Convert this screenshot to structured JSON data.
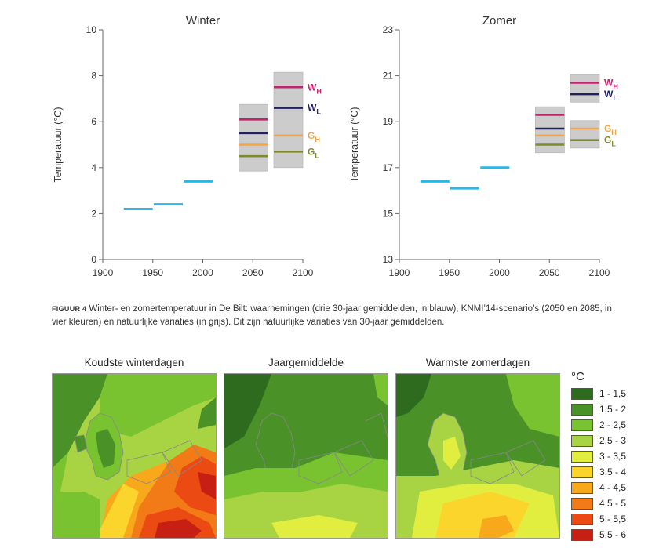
{
  "chart_data": [
    {
      "type": "line",
      "title": "Winter",
      "ylabel": "Temperatuur (°C)",
      "xlim": [
        1900,
        2100
      ],
      "ylim": [
        0,
        10
      ],
      "x_ticks": [
        "1900",
        "1950",
        "2000",
        "2050",
        "2100"
      ],
      "y_ticks": [
        "0",
        "2",
        "4",
        "6",
        "8",
        "10"
      ],
      "observations": [
        {
          "x_start": 1921,
          "x_end": 1950,
          "y": 2.2
        },
        {
          "x_start": 1951,
          "x_end": 1980,
          "y": 2.4
        },
        {
          "x_start": 1981,
          "x_end": 2010,
          "y": 3.4
        }
      ],
      "natural_variation": [
        {
          "x_start": 2036,
          "x_end": 2065,
          "y_min": 3.85,
          "y_max": 6.75
        },
        {
          "x_start": 2071,
          "x_end": 2100,
          "y_min": 4.0,
          "y_max": 8.15
        }
      ],
      "scenarios": [
        {
          "name": "W",
          "sub": "H",
          "color": "#c0246e",
          "values": [
            {
              "x_start": 2036,
              "x_end": 2065,
              "y": 6.1
            },
            {
              "x_start": 2071,
              "x_end": 2100,
              "y": 7.5
            }
          ]
        },
        {
          "name": "W",
          "sub": "L",
          "color": "#22205a",
          "values": [
            {
              "x_start": 2036,
              "x_end": 2065,
              "y": 5.5
            },
            {
              "x_start": 2071,
              "x_end": 2100,
              "y": 6.6
            }
          ]
        },
        {
          "name": "G",
          "sub": "H",
          "color": "#f4a646",
          "values": [
            {
              "x_start": 2036,
              "x_end": 2065,
              "y": 5.0
            },
            {
              "x_start": 2071,
              "x_end": 2100,
              "y": 5.4
            }
          ]
        },
        {
          "name": "G",
          "sub": "L",
          "color": "#7f8a30",
          "values": [
            {
              "x_start": 2036,
              "x_end": 2065,
              "y": 4.5
            },
            {
              "x_start": 2071,
              "x_end": 2100,
              "y": 4.7
            }
          ]
        }
      ]
    },
    {
      "type": "line",
      "title": "Zomer",
      "ylabel": "Temperatuur (°C)",
      "xlim": [
        1900,
        2100
      ],
      "ylim": [
        13,
        23
      ],
      "x_ticks": [
        "1900",
        "1950",
        "2000",
        "2050",
        "2100"
      ],
      "y_ticks": [
        "13",
        "15",
        "17",
        "19",
        "21",
        "23"
      ],
      "observations": [
        {
          "x_start": 1921,
          "x_end": 1950,
          "y": 16.4
        },
        {
          "x_start": 1951,
          "x_end": 1980,
          "y": 16.1
        },
        {
          "x_start": 1981,
          "x_end": 2010,
          "y": 17.0
        }
      ],
      "natural_variation": [
        {
          "x_start": 2036,
          "x_end": 2065,
          "y_min": 17.65,
          "y_max": 19.65
        },
        {
          "x_start": 2071,
          "x_end": 2100,
          "y_min": 19.85,
          "y_max": 21.05
        },
        {
          "x_start": 2071,
          "x_end": 2100,
          "y_min": 17.85,
          "y_max": 19.05
        }
      ],
      "scenarios": [
        {
          "name": "W",
          "sub": "H",
          "color": "#c0246e",
          "values": [
            {
              "x_start": 2036,
              "x_end": 2065,
              "y": 19.3
            },
            {
              "x_start": 2071,
              "x_end": 2100,
              "y": 20.7
            }
          ]
        },
        {
          "name": "W",
          "sub": "L",
          "color": "#22205a",
          "values": [
            {
              "x_start": 2036,
              "x_end": 2065,
              "y": 18.7
            },
            {
              "x_start": 2071,
              "x_end": 2100,
              "y": 20.2
            }
          ]
        },
        {
          "name": "G",
          "sub": "H",
          "color": "#f4a646",
          "values": [
            {
              "x_start": 2036,
              "x_end": 2065,
              "y": 18.4
            },
            {
              "x_start": 2071,
              "x_end": 2100,
              "y": 18.7
            }
          ]
        },
        {
          "name": "G",
          "sub": "L",
          "color": "#7f8a30",
          "values": [
            {
              "x_start": 2036,
              "x_end": 2065,
              "y": 18.0
            },
            {
              "x_start": 2071,
              "x_end": 2100,
              "y": 18.2
            }
          ]
        }
      ]
    }
  ],
  "colors": {
    "observations": "#2fb4e6",
    "natural_variation": "#cccccc",
    "axis": "#666666"
  },
  "caption": {
    "label": "FIGUUR 4",
    "text": "Winter- en zomertemperatuur in De Bilt: waarnemingen (drie 30-jaar gemiddelden, in blauw), KNMI’14-scenario’s (2050 en 2085, in vier kleuren) en natuurlijke variaties (in grijs). Dit zijn natuurlijke variaties van 30-jaar gemiddelden."
  },
  "maps": [
    {
      "title": "Koudste winterdagen"
    },
    {
      "title": "Jaargemiddelde"
    },
    {
      "title": "Warmste zomerdagen"
    }
  ],
  "legend": {
    "unit": "°C",
    "items": [
      {
        "label": "1 - 1,5",
        "color": "#2e6b1f"
      },
      {
        "label": "1,5 - 2",
        "color": "#4a9128"
      },
      {
        "label": "2 - 2,5",
        "color": "#79c230"
      },
      {
        "label": "2,5 - 3",
        "color": "#a8d443"
      },
      {
        "label": "3 - 3,5",
        "color": "#e2ee3f"
      },
      {
        "label": "3,5 - 4",
        "color": "#fbd52c"
      },
      {
        "label": "4 - 4,5",
        "color": "#f7a81b"
      },
      {
        "label": "4,5 - 5",
        "color": "#f27b18"
      },
      {
        "label": "5 - 5,5",
        "color": "#eb4a12"
      },
      {
        "label": "5,5 - 6",
        "color": "#c81f14"
      }
    ]
  }
}
